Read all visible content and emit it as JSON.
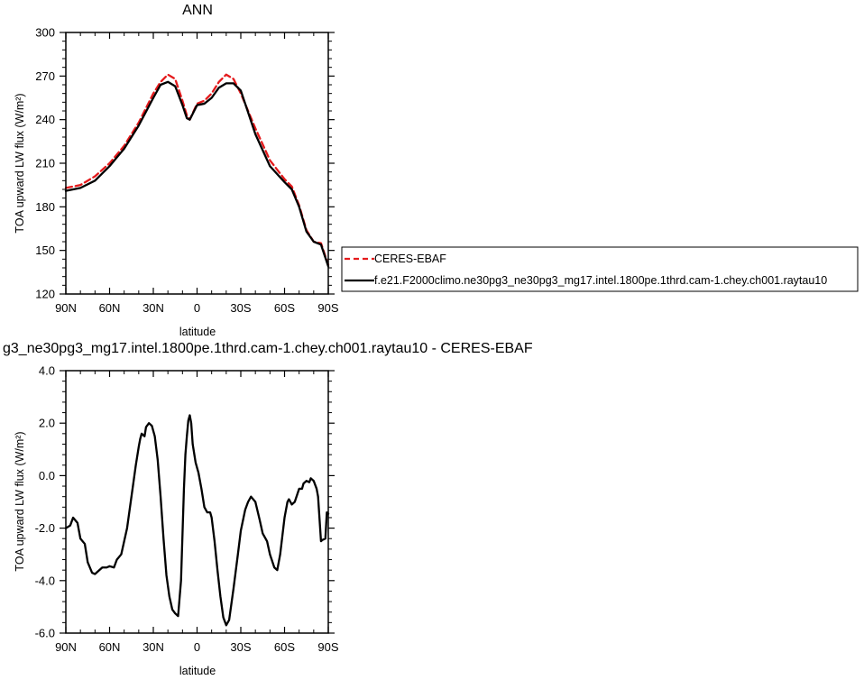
{
  "chart_data": [
    {
      "type": "line",
      "title": "ANN",
      "xlabel": "latitude",
      "ylabel": "TOA upward LW flux (W/m²)",
      "ylim": [
        120,
        300
      ],
      "xlim": [
        -90,
        90
      ],
      "x_tick_values": [
        -90,
        -60,
        -30,
        0,
        30,
        60,
        90
      ],
      "x_tick_labels": [
        "90N",
        "60N",
        "30N",
        "0",
        "30S",
        "60S",
        "90S"
      ],
      "y_tick_values": [
        120,
        150,
        180,
        210,
        240,
        270,
        300
      ],
      "y_tick_labels": [
        "120",
        "150",
        "180",
        "210",
        "240",
        "270",
        "300"
      ],
      "grid": false,
      "legend": "right",
      "series": [
        {
          "name": "CERES-EBAF",
          "color": "#e41a1c",
          "dash": "dashed",
          "x": [
            -90,
            -80,
            -70,
            -60,
            -50,
            -40,
            -30,
            -25,
            -20,
            -15,
            -10,
            -7,
            -5,
            0,
            5,
            10,
            15,
            20,
            25,
            30,
            40,
            50,
            60,
            65,
            70,
            75,
            80,
            85,
            90
          ],
          "y": [
            193,
            195,
            201,
            210,
            222,
            238,
            258,
            266,
            271,
            268,
            253,
            243,
            240,
            251,
            253,
            258,
            266,
            271,
            268,
            258,
            234,
            212,
            199,
            194,
            181,
            164,
            156,
            155,
            140
          ]
        },
        {
          "name": "f.e21.F2000climo.ne30pg3_ne30pg3_mg17.intel.1800pe.1thrd.cam-1.chey.ch001.raytau10",
          "color": "#000000",
          "dash": "solid",
          "x": [
            -90,
            -80,
            -70,
            -60,
            -50,
            -40,
            -30,
            -25,
            -20,
            -15,
            -10,
            -7,
            -5,
            0,
            5,
            10,
            15,
            20,
            25,
            30,
            40,
            50,
            60,
            65,
            70,
            75,
            80,
            85,
            90
          ],
          "y": [
            191,
            193,
            198,
            208,
            220,
            236,
            255,
            264,
            266,
            263,
            250,
            241,
            240,
            250,
            251,
            255,
            262,
            265,
            265,
            260,
            230,
            208,
            197,
            192,
            180,
            163,
            156,
            154,
            139
          ]
        }
      ]
    },
    {
      "type": "line",
      "title": "g3_ne30pg3_mg17.intel.1800pe.1thrd.cam-1.chey.ch001.raytau10 - CERES-EBAF",
      "xlabel": "latitude",
      "ylabel": "TOA upward LW flux (W/m²)",
      "ylim": [
        -6.0,
        4.0
      ],
      "xlim": [
        -90,
        90
      ],
      "x_tick_values": [
        -90,
        -60,
        -30,
        0,
        30,
        60,
        90
      ],
      "x_tick_labels": [
        "90N",
        "60N",
        "30N",
        "0",
        "30S",
        "60S",
        "90S"
      ],
      "y_tick_values": [
        -6,
        -4,
        -2,
        0,
        2,
        4
      ],
      "y_tick_labels": [
        "-6.0",
        "-4.0",
        "-2.0",
        "0.0",
        "2.0",
        "4.0"
      ],
      "grid": false,
      "series": [
        {
          "color": "#000000",
          "dash": "solid",
          "x": [
            -90,
            -87,
            -85,
            -82,
            -80,
            -77,
            -75,
            -72,
            -70,
            -67,
            -65,
            -62,
            -60,
            -57,
            -55,
            -52,
            -50,
            -48,
            -46,
            -44,
            -42,
            -40,
            -39,
            -38,
            -36,
            -35,
            -33,
            -31,
            -29,
            -27,
            -25,
            -23,
            -21,
            -19,
            -17,
            -15,
            -13,
            -11,
            -9,
            -8,
            -7,
            -6,
            -5,
            -4,
            -3,
            -1,
            1,
            3,
            5,
            7,
            9,
            10,
            12,
            14,
            16,
            18,
            20,
            22,
            25,
            28,
            30,
            33,
            35,
            37,
            40,
            43,
            45,
            48,
            50,
            53,
            55,
            57,
            60,
            62,
            63,
            65,
            67,
            70,
            72,
            73,
            75,
            77,
            78,
            80,
            82,
            83,
            85,
            86,
            88,
            89,
            90
          ],
          "y": [
            -2.0,
            -1.9,
            -1.6,
            -1.8,
            -2.4,
            -2.6,
            -3.3,
            -3.7,
            -3.75,
            -3.6,
            -3.5,
            -3.5,
            -3.45,
            -3.5,
            -3.2,
            -3.0,
            -2.5,
            -2.0,
            -1.2,
            -0.4,
            0.4,
            1.1,
            1.4,
            1.6,
            1.5,
            1.85,
            2.0,
            1.9,
            1.5,
            0.6,
            -0.8,
            -2.4,
            -3.8,
            -4.6,
            -5.1,
            -5.25,
            -5.35,
            -4.0,
            -0.5,
            0.8,
            1.5,
            2.1,
            2.3,
            2.0,
            1.2,
            0.5,
            0.1,
            -0.5,
            -1.2,
            -1.4,
            -1.4,
            -1.6,
            -2.5,
            -3.6,
            -4.6,
            -5.4,
            -5.7,
            -5.5,
            -4.3,
            -3.0,
            -2.1,
            -1.3,
            -1.0,
            -0.8,
            -1.0,
            -1.7,
            -2.2,
            -2.5,
            -3.0,
            -3.5,
            -3.6,
            -3.0,
            -1.6,
            -1.0,
            -0.9,
            -1.1,
            -1.0,
            -0.5,
            -0.5,
            -0.3,
            -0.2,
            -0.25,
            -0.1,
            -0.2,
            -0.5,
            -0.8,
            -2.5,
            -2.45,
            -2.4,
            -1.4,
            -1.45
          ]
        }
      ]
    }
  ]
}
